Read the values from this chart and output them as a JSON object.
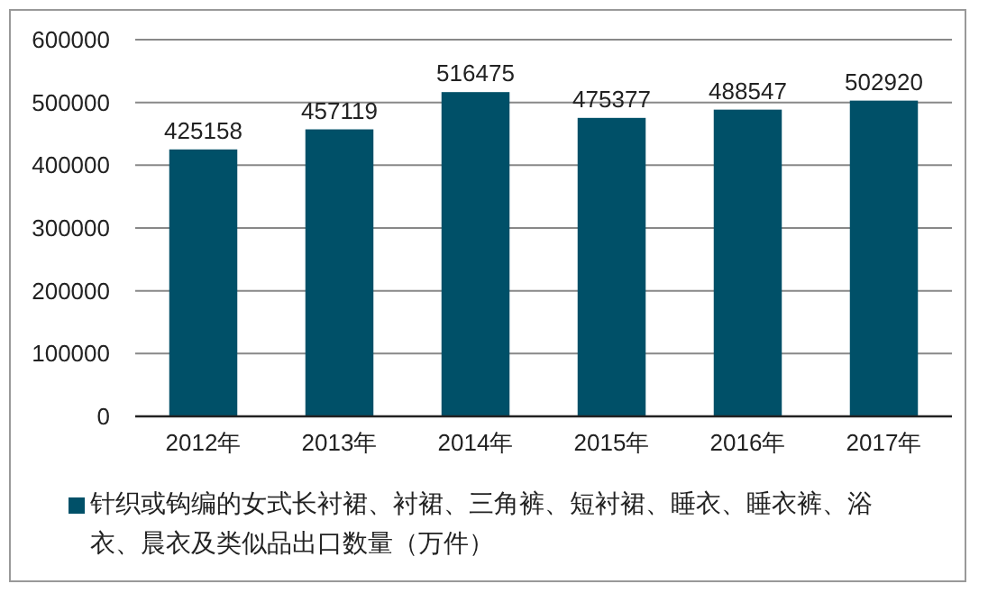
{
  "chart_data": {
    "type": "bar",
    "categories": [
      "2012年",
      "2013年",
      "2014年",
      "2015年",
      "2016年",
      "2017年"
    ],
    "series": [
      {
        "name": "针织或钩编的女式长衬裙、衬裙、三角裤、短衬裙、睡衣、睡衣裤、浴衣、晨衣及类似品出口数量（万件）",
        "color": "#005068",
        "values": [
          425158,
          457119,
          516475,
          475377,
          488547,
          502920
        ]
      }
    ],
    "ylim": [
      0,
      600000
    ],
    "yticks": [
      0,
      100000,
      200000,
      300000,
      400000,
      500000,
      600000
    ],
    "grid": "y",
    "legend": "bottom",
    "data_labels": true
  }
}
